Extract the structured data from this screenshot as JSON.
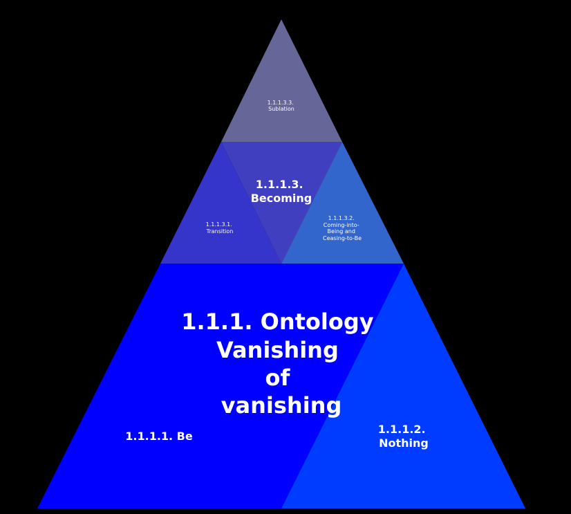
{
  "diagram": {
    "main": {
      "lines": [
        "1.1.1. Ontology",
        "Vanishing",
        "of",
        "vanishing"
      ],
      "color": "#0000ff"
    },
    "be": {
      "label": "1.1.1.1. Be"
    },
    "nothing": {
      "lines": [
        "1.1.1.2.",
        "Nothing"
      ],
      "color": "#003cff"
    },
    "becoming": {
      "lines": [
        "1.1.1.3.",
        "Becoming"
      ],
      "color": "#3f3fbf"
    },
    "transition": {
      "lines": [
        "1.1.1.3.1.",
        "Transition"
      ],
      "color": "#3535cc"
    },
    "coming": {
      "lines": [
        "1.1.1.3.2.",
        "Coming-into-",
        "Being and",
        "Ceasing-to-Be"
      ],
      "color": "#3366cc"
    },
    "sublation": {
      "lines": [
        "1.1.1.3.3.",
        "Sublation"
      ],
      "color": "#666699"
    }
  }
}
